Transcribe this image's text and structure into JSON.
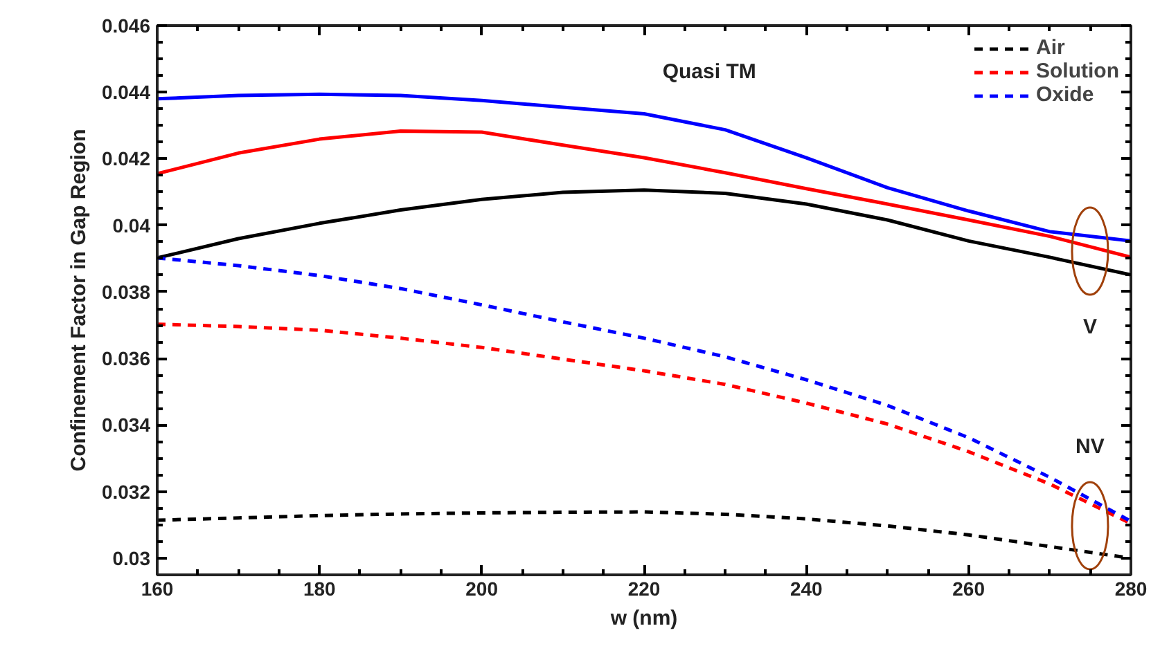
{
  "chart_data": {
    "type": "line",
    "xlabel": "w (nm)",
    "ylabel": "Confinement Factor in Gap Region",
    "xlim": [
      160,
      280
    ],
    "ylim": [
      0.0295,
      0.046
    ],
    "xticks": [
      160,
      180,
      200,
      220,
      240,
      260,
      280
    ],
    "yticks": [
      0.03,
      0.032,
      0.034,
      0.036,
      0.038,
      0.04,
      0.042,
      0.044,
      0.046
    ],
    "grid": false,
    "legend": "top right",
    "x": [
      160,
      170,
      180,
      190,
      200,
      210,
      220,
      230,
      240,
      250,
      260,
      270,
      280
    ],
    "series": [
      {
        "color": "#0000ff",
        "line_style": "solid",
        "values": [
          0.0438,
          0.0439,
          0.04394,
          0.0439,
          0.04375,
          0.04355,
          0.04335,
          0.04287,
          0.04203,
          0.04113,
          0.04043,
          0.03981,
          0.03953
        ]
      },
      {
        "color": "#ff0000",
        "line_style": "solid",
        "values": [
          0.04155,
          0.04217,
          0.04259,
          0.04283,
          0.0428,
          0.04241,
          0.04203,
          0.04158,
          0.0411,
          0.04064,
          0.04016,
          0.03967,
          0.03904
        ]
      },
      {
        "color": "#000000",
        "line_style": "solid",
        "values": [
          0.03902,
          0.0396,
          0.04006,
          0.04046,
          0.04078,
          0.04099,
          0.04106,
          0.04096,
          0.04064,
          0.04016,
          0.03953,
          0.03904,
          0.03851
        ]
      },
      {
        "name": "Air",
        "color": "#000000",
        "line_style": "dashed",
        "values": [
          0.03114,
          0.03121,
          0.03128,
          0.03133,
          0.03136,
          0.03138,
          0.03139,
          0.03132,
          0.03118,
          0.03097,
          0.0307,
          0.03035,
          0.03
        ]
      },
      {
        "name": "Solution",
        "color": "#ff0000",
        "line_style": "dashed",
        "values": [
          0.03703,
          0.03696,
          0.03685,
          0.03661,
          0.03633,
          0.03598,
          0.03563,
          0.03522,
          0.03466,
          0.03403,
          0.0332,
          0.03223,
          0.03104
        ]
      },
      {
        "name": "Oxide",
        "color": "#0000ff",
        "line_style": "dashed",
        "values": [
          0.03902,
          0.03879,
          0.03849,
          0.0381,
          0.03761,
          0.0371,
          0.03661,
          0.03605,
          0.03536,
          0.03459,
          0.03362,
          0.03243,
          0.03111
        ]
      }
    ],
    "annotations": [
      "Quasi TM",
      "V",
      "NV"
    ]
  }
}
